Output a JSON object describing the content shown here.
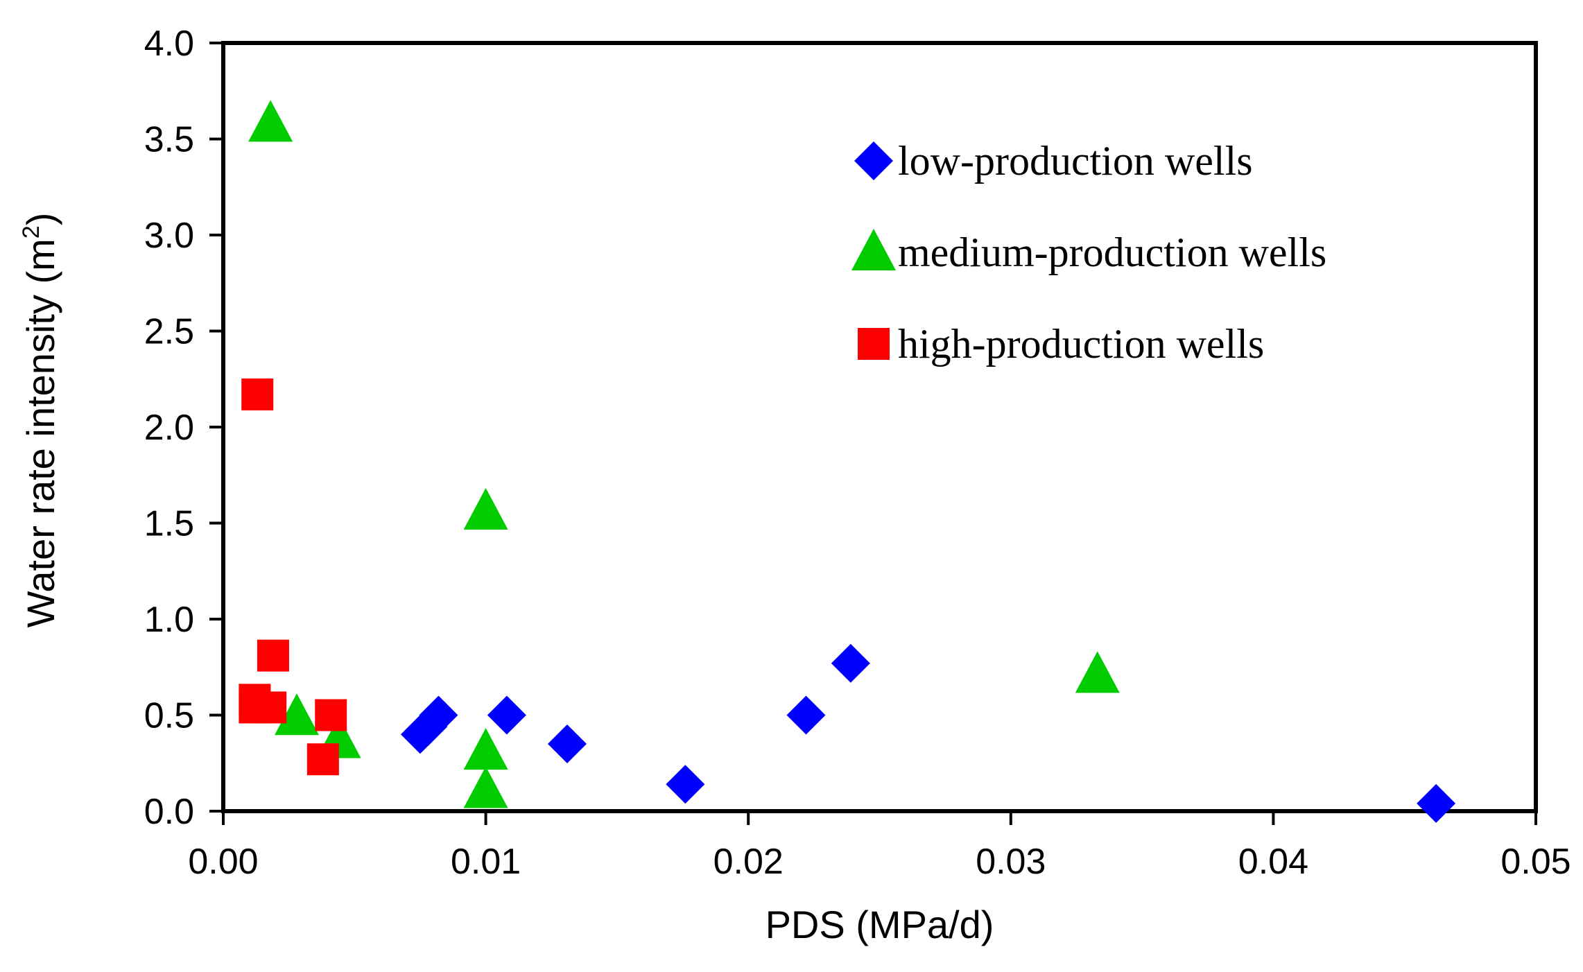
{
  "chart_data": {
    "type": "scatter",
    "xlabel": "PDS (MPa/d)",
    "ylabel": {
      "text": "Water rate intensity (m",
      "superscript": "2",
      "suffix": ")"
    },
    "xlim": [
      0,
      0.05
    ],
    "ylim": [
      0,
      4.0
    ],
    "x_ticks": [
      "0.00",
      "0.01",
      "0.02",
      "0.03",
      "0.04",
      "0.05"
    ],
    "y_ticks": [
      "0.0",
      "0.5",
      "1.0",
      "1.5",
      "2.0",
      "2.5",
      "3.0",
      "3.5",
      "4.0"
    ],
    "grid": false,
    "legend_position": "top-right",
    "series": [
      {
        "name": "low-production wells",
        "marker": "diamond",
        "color": "#0000FF",
        "points": [
          [
            0.0075,
            0.4
          ],
          [
            0.0078,
            0.44
          ],
          [
            0.0082,
            0.5
          ],
          [
            0.0108,
            0.5
          ],
          [
            0.0131,
            0.35
          ],
          [
            0.0176,
            0.14
          ],
          [
            0.0222,
            0.5
          ],
          [
            0.0239,
            0.77
          ],
          [
            0.0462,
            0.04
          ]
        ]
      },
      {
        "name": "medium-production wells",
        "marker": "triangle",
        "color": "#00CC00",
        "points": [
          [
            0.0018,
            3.58
          ],
          [
            0.0028,
            0.49
          ],
          [
            0.0044,
            0.37
          ],
          [
            0.01,
            1.56
          ],
          [
            0.01,
            0.31
          ],
          [
            0.01,
            0.11
          ],
          [
            0.0333,
            0.71
          ]
        ]
      },
      {
        "name": "high-production wells",
        "marker": "square",
        "color": "#FF0000",
        "points": [
          [
            0.0013,
            2.17
          ],
          [
            0.0019,
            0.81
          ],
          [
            0.0012,
            0.58
          ],
          [
            0.0012,
            0.54
          ],
          [
            0.0018,
            0.54
          ],
          [
            0.0041,
            0.5
          ],
          [
            0.0038,
            0.27
          ]
        ]
      }
    ]
  }
}
